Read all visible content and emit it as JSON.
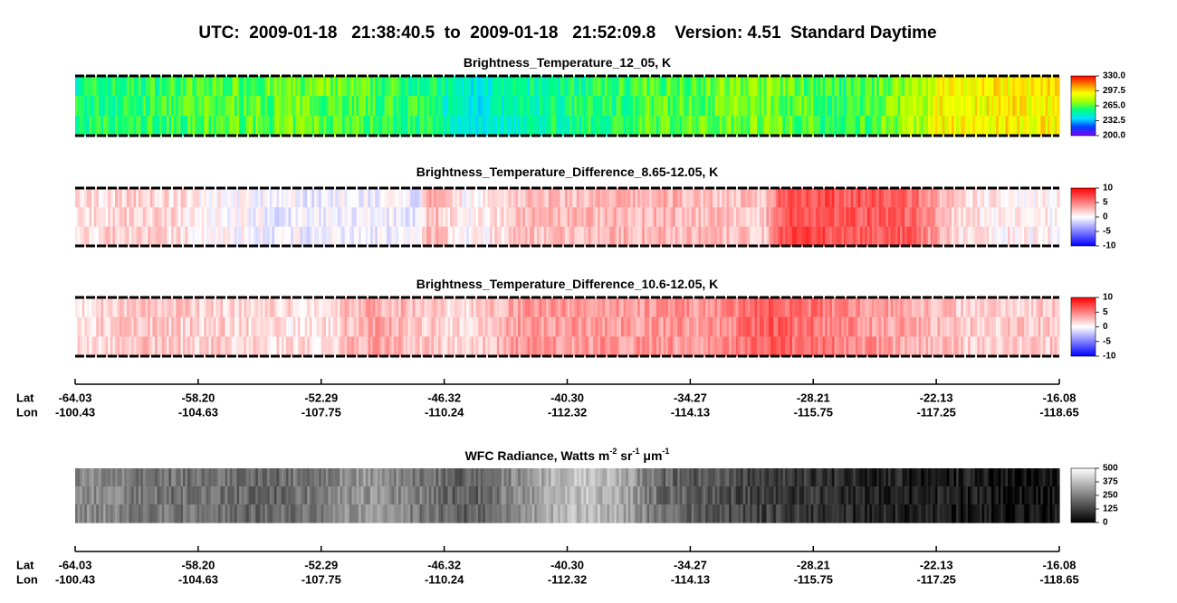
{
  "title": "UTC:  2009-01-18   21:38:40.5  to  2009-01-18   21:52:09.8    Version: 4.51  Standard Daytime",
  "chart_data": [
    {
      "type": "heatmap",
      "title": [
        "Brightness_Temperature_12_05, K"
      ],
      "colormap": [
        "#8000ff",
        "#0040ff",
        "#00e0ff",
        "#00ff80",
        "#a0ff00",
        "#ffff00",
        "#ff8000",
        "#ff0000"
      ],
      "colorbar": {
        "lim": [
          200,
          330
        ],
        "ticks": [
          {
            "value": 330,
            "label": "330.0"
          },
          {
            "value": 297.5,
            "label": "297.5"
          },
          {
            "value": 265,
            "label": "265.0"
          },
          {
            "value": 232.5,
            "label": "232.5"
          },
          {
            "value": 200,
            "label": "200.0"
          }
        ]
      }
    },
    {
      "type": "heatmap",
      "title": [
        "Brightness_Temperature_Difference_8.65-12.05, K"
      ],
      "colormap": [
        "#0000ff",
        "#ffffff",
        "#ff0000"
      ],
      "colorbar": {
        "lim": [
          -10,
          10
        ],
        "ticks": [
          10,
          5,
          0,
          -5,
          -10
        ]
      }
    },
    {
      "type": "heatmap",
      "title": [
        "Brightness_Temperature_Difference_10.6-12.05, K"
      ],
      "colormap": [
        "#0000ff",
        "#ffffff",
        "#ff0000"
      ],
      "colorbar": {
        "lim": [
          -10,
          10
        ],
        "ticks": [
          10,
          5,
          0,
          -5,
          -10
        ]
      }
    },
    {
      "type": "heatmap",
      "title": [
        "WFC Radiance, Watts m",
        "-2",
        " sr",
        "-1",
        " μm",
        "-1"
      ],
      "colormap": [
        "#000000",
        "#ffffff"
      ],
      "colorbar": {
        "lim": [
          0,
          500
        ],
        "ticks": [
          500,
          375,
          250,
          125,
          0
        ]
      }
    }
  ],
  "lat_lon_axis": {
    "lat_label": "Lat",
    "lon_label": "Lon",
    "lat": [
      "-64.03",
      "-58.20",
      "-52.29",
      "-46.32",
      "-40.30",
      "-34.27",
      "-28.21",
      "-22.13",
      "-16.08"
    ],
    "lon": [
      "-100.43",
      "-104.63",
      "-107.75",
      "-110.24",
      "-112.32",
      "-114.13",
      "-115.75",
      "-117.25",
      "-118.65"
    ]
  }
}
